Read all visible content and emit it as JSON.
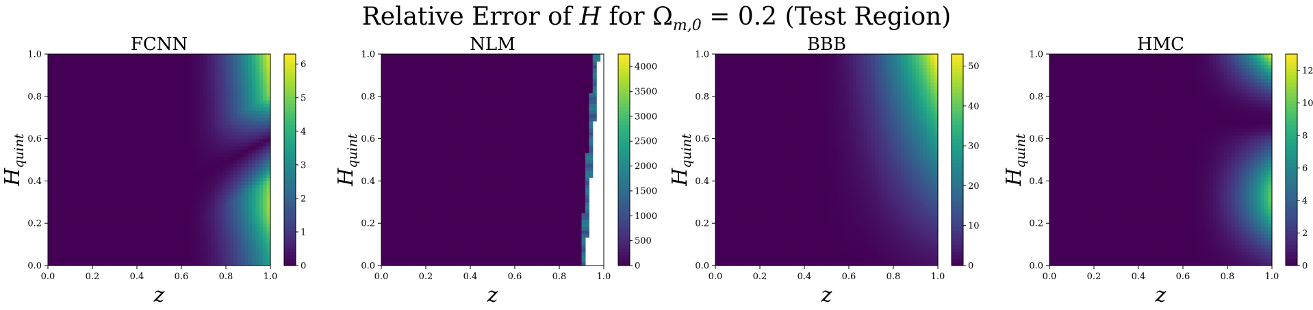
{
  "figure": {
    "suptitle": "Relative Error of H for Ω_{m,0} = 0.2 (Test Region)"
  },
  "chart_data": [
    {
      "type": "heatmap",
      "title": "FCNN",
      "xlabel": "z",
      "ylabel": "H_quint",
      "xlim": [
        0,
        1
      ],
      "ylim": [
        0,
        1
      ],
      "xticks": [
        "0.0",
        "0.2",
        "0.4",
        "0.6",
        "0.8",
        "1.0"
      ],
      "yticks": [
        "0.0",
        "0.2",
        "0.4",
        "0.6",
        "0.8",
        "1.0"
      ],
      "colorbar": {
        "min": 0,
        "max": 6.3,
        "ticks": [
          "0",
          "1",
          "2",
          "3",
          "4",
          "5",
          "6"
        ]
      },
      "colormap": "viridis",
      "features": [
        {
          "desc": "high error top-right",
          "z": 1.0,
          "H": 1.0,
          "value": 6.3
        },
        {
          "desc": "secondary maximum right edge",
          "z": 1.0,
          "H": 0.3,
          "value": 5.0
        },
        {
          "desc": "near-zero valley",
          "z": 0.9,
          "H": 0.45,
          "value": 0.0
        }
      ]
    },
    {
      "type": "heatmap",
      "title": "NLM",
      "xlabel": "z",
      "ylabel": "H_quint",
      "xlim": [
        0,
        1
      ],
      "ylim": [
        0,
        1
      ],
      "xticks": [
        "0.0",
        "0.2",
        "0.4",
        "0.6",
        "0.8",
        "1.0"
      ],
      "yticks": [
        "0.0",
        "0.2",
        "0.4",
        "0.6",
        "0.8",
        "1.0"
      ],
      "colorbar": {
        "min": 0,
        "max": 4250,
        "ticks": [
          "0",
          "500",
          "1000",
          "1500",
          "2000",
          "2500",
          "3000",
          "3500",
          "4000"
        ]
      },
      "colormap": "viridis",
      "features": [
        {
          "desc": "near-zero error for z < 0.9",
          "z": 0.5,
          "H": 0.5,
          "value": 0
        },
        {
          "desc": "undefined (blank) region right edge",
          "z": 0.97,
          "H": 0.5,
          "value": null
        }
      ]
    },
    {
      "type": "heatmap",
      "title": "BBB",
      "xlabel": "z",
      "ylabel": "H_quint",
      "xlim": [
        0,
        1
      ],
      "ylim": [
        0,
        1
      ],
      "xticks": [
        "0.0",
        "0.2",
        "0.4",
        "0.6",
        "0.8",
        "1.0"
      ],
      "yticks": [
        "0.0",
        "0.2",
        "0.4",
        "0.6",
        "0.8",
        "1.0"
      ],
      "colorbar": {
        "min": 0,
        "max": 53,
        "ticks": [
          "0",
          "10",
          "20",
          "30",
          "40",
          "50"
        ]
      },
      "colormap": "viridis",
      "features": [
        {
          "desc": "high error top-right",
          "z": 1.0,
          "H": 1.0,
          "value": 53
        },
        {
          "desc": "low error bottom",
          "z": 0.9,
          "H": 0.1,
          "value": 1
        }
      ]
    },
    {
      "type": "heatmap",
      "title": "HMC",
      "xlabel": "z",
      "ylabel": "H_quint",
      "xlim": [
        0,
        1
      ],
      "ylim": [
        0,
        1
      ],
      "xticks": [
        "0.0",
        "0.2",
        "0.4",
        "0.6",
        "0.8",
        "1.0"
      ],
      "yticks": [
        "0.0",
        "0.2",
        "0.4",
        "0.6",
        "0.8",
        "1.0"
      ],
      "colorbar": {
        "min": 0,
        "max": 13,
        "ticks": [
          "0",
          "2",
          "4",
          "6",
          "8",
          "10",
          "12"
        ]
      },
      "colormap": "viridis",
      "features": [
        {
          "desc": "high error top-right",
          "z": 1.0,
          "H": 1.0,
          "value": 13
        },
        {
          "desc": "secondary maximum right edge",
          "z": 1.0,
          "H": 0.35,
          "value": 10
        },
        {
          "desc": "near-zero valley",
          "z": 0.98,
          "H": 0.68,
          "value": 0
        }
      ]
    }
  ]
}
